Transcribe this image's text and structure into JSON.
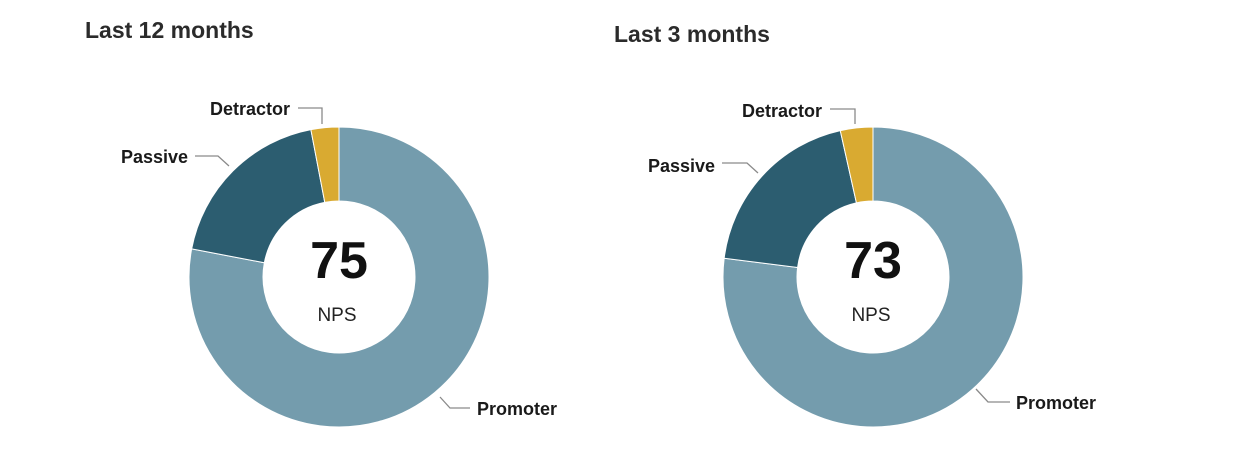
{
  "chart_data": [
    {
      "type": "pie",
      "title": "Last 12 months",
      "center_value": "75",
      "center_label": "NPS",
      "categories": [
        "Promoter",
        "Passive",
        "Detractor"
      ],
      "values": [
        78,
        19,
        3
      ],
      "colors": [
        "#749cad",
        "#2c5d70",
        "#d9aa31"
      ]
    },
    {
      "type": "pie",
      "title": "Last 3 months",
      "center_value": "73",
      "center_label": "NPS",
      "categories": [
        "Promoter",
        "Passive",
        "Detractor"
      ],
      "values": [
        77,
        19.5,
        3.5
      ],
      "colors": [
        "#749cad",
        "#2c5d70",
        "#d9aa31"
      ]
    }
  ]
}
